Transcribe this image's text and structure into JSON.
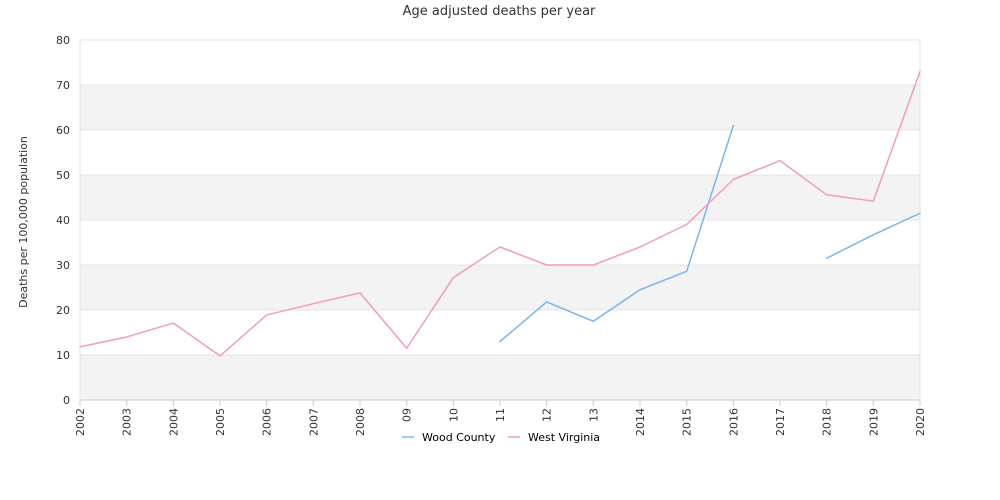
{
  "chart_data": {
    "type": "line",
    "title": "Age adjusted deaths per year",
    "ylabel": "Deaths per 100,000 population",
    "xlabel": "",
    "categories": [
      "2002",
      "2003",
      "2004",
      "2005",
      "2006",
      "2007",
      "2008",
      "09",
      "10",
      "11",
      "12",
      "13",
      "2014",
      "2015",
      "2016",
      "2017",
      "2018",
      "2019",
      "2020"
    ],
    "ylim": [
      0,
      80
    ],
    "yticks": [
      0,
      10,
      20,
      30,
      40,
      50,
      60,
      70,
      80
    ],
    "grid": "horizontal bands",
    "legend_position": "bottom",
    "series": [
      {
        "name": "Wood County",
        "color": "#7cb5ec",
        "values": [
          null,
          null,
          null,
          null,
          null,
          null,
          null,
          null,
          null,
          13,
          21.8,
          17.5,
          24.5,
          28.6,
          61,
          null,
          31.5,
          36.7,
          41.5
        ]
      },
      {
        "name": "West Virginia",
        "color": "#f29ac4",
        "values": [
          11.8,
          14,
          17.1,
          9.8,
          18.9,
          21.4,
          23.8,
          11.5,
          27.2,
          34,
          30,
          30,
          34,
          39,
          49,
          53.2,
          45.6,
          44.2,
          73
        ]
      }
    ]
  }
}
